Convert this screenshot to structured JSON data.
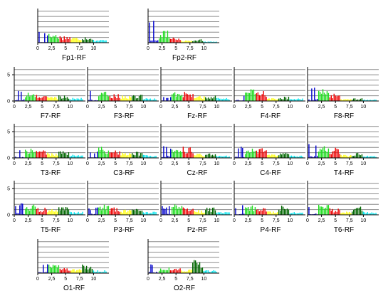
{
  "chart_data": {
    "type": "bar",
    "description_grid": "EEG spectral panels per electrode",
    "x_ticks": [
      "0",
      "2,5",
      "5",
      "7,5",
      "10"
    ],
    "x_range": [
      0,
      12.5
    ],
    "y_ticks": [
      "0",
      "5"
    ],
    "y_range": [
      0,
      6.5
    ],
    "grid": true,
    "band_colors": {
      "delta": "#0000cc",
      "theta": "#22dd22",
      "alpha1": "#ee0000",
      "alpha2": "#ffff00",
      "beta1": "#006600",
      "beta2": "#00e5ee"
    },
    "bands": [
      {
        "name": "delta",
        "from": 0.0,
        "to": 2.0
      },
      {
        "name": "theta",
        "from": 2.0,
        "to": 4.0
      },
      {
        "name": "alpha1",
        "from": 4.0,
        "to": 6.0
      },
      {
        "name": "alpha2",
        "from": 6.0,
        "to": 8.0
      },
      {
        "name": "beta1",
        "from": 8.0,
        "to": 10.0
      },
      {
        "name": "beta2",
        "from": 10.0,
        "to": 12.5
      }
    ],
    "panels": [
      {
        "label": "Fp1-RF",
        "profile": {
          "delta": 2.2,
          "theta": 1.8,
          "alpha1": 1.4,
          "alpha2": 1.1,
          "beta1": 1.3,
          "beta2": 0.6
        }
      },
      {
        "label": "Fp2-RF",
        "profile": {
          "delta": 6.0,
          "theta": 2.3,
          "alpha1": 1.2,
          "alpha2": 0.5,
          "beta1": 0.7,
          "beta2": 0.3
        }
      },
      {
        "label": "F7-RF",
        "profile": {
          "delta": 2.3,
          "theta": 1.6,
          "alpha1": 1.2,
          "alpha2": 0.9,
          "beta1": 1.2,
          "beta2": 0.6
        }
      },
      {
        "label": "F3-RF",
        "profile": {
          "delta": 2.2,
          "theta": 1.8,
          "alpha1": 1.4,
          "alpha2": 1.1,
          "beta1": 1.2,
          "beta2": 0.6
        }
      },
      {
        "label": "Fz-RF",
        "profile": {
          "delta": 0.8,
          "theta": 2.2,
          "alpha1": 1.8,
          "alpha2": 1.0,
          "beta1": 1.1,
          "beta2": 0.6
        }
      },
      {
        "label": "F4-RF",
        "profile": {
          "delta": 1.4,
          "theta": 2.4,
          "alpha1": 1.9,
          "alpha2": 0.6,
          "beta1": 0.9,
          "beta2": 0.5
        }
      },
      {
        "label": "F8-RF",
        "profile": {
          "delta": 3.8,
          "theta": 2.6,
          "alpha1": 1.4,
          "alpha2": 0.4,
          "beta1": 0.6,
          "beta2": 0.3
        }
      },
      {
        "label": "T3-RF",
        "profile": {
          "delta": 2.0,
          "theta": 1.9,
          "alpha1": 1.5,
          "alpha2": 1.0,
          "beta1": 1.3,
          "beta2": 0.6
        }
      },
      {
        "label": "C3-RF",
        "profile": {
          "delta": 1.4,
          "theta": 2.2,
          "alpha1": 1.7,
          "alpha2": 1.0,
          "beta1": 1.2,
          "beta2": 0.6
        }
      },
      {
        "label": "Cz-RF",
        "profile": {
          "delta": 2.8,
          "theta": 1.6,
          "alpha1": 2.2,
          "alpha2": 0.8,
          "beta1": 0.9,
          "beta2": 0.5
        }
      },
      {
        "label": "C4-RF",
        "profile": {
          "delta": 2.2,
          "theta": 1.9,
          "alpha1": 2.0,
          "alpha2": 0.7,
          "beta1": 1.0,
          "beta2": 0.5
        }
      },
      {
        "label": "T4-RF",
        "profile": {
          "delta": 2.7,
          "theta": 2.5,
          "alpha1": 2.0,
          "alpha2": 0.6,
          "beta1": 1.0,
          "beta2": 0.5
        }
      },
      {
        "label": "T5-RF",
        "profile": {
          "delta": 2.4,
          "theta": 2.1,
          "alpha1": 1.4,
          "alpha2": 1.1,
          "beta1": 1.6,
          "beta2": 0.6
        }
      },
      {
        "label": "P3-RF",
        "profile": {
          "delta": 1.5,
          "theta": 2.2,
          "alpha1": 1.5,
          "alpha2": 1.0,
          "beta1": 1.3,
          "beta2": 0.6
        }
      },
      {
        "label": "Pz-RF",
        "profile": {
          "delta": 1.8,
          "theta": 2.1,
          "alpha1": 1.6,
          "alpha2": 0.9,
          "beta1": 1.5,
          "beta2": 0.6
        }
      },
      {
        "label": "P4-RF",
        "profile": {
          "delta": 2.0,
          "theta": 1.8,
          "alpha1": 1.6,
          "alpha2": 0.7,
          "beta1": 1.9,
          "beta2": 0.6
        }
      },
      {
        "label": "T6-RF",
        "profile": {
          "delta": 2.0,
          "theta": 2.2,
          "alpha1": 1.3,
          "alpha2": 0.8,
          "beta1": 1.6,
          "beta2": 0.6
        }
      },
      {
        "label": "O1-RF",
        "profile": {
          "delta": 2.0,
          "theta": 1.7,
          "alpha1": 1.2,
          "alpha2": 0.9,
          "beta1": 1.8,
          "beta2": 0.6
        }
      },
      {
        "label": "O2-RF",
        "profile": {
          "delta": 1.9,
          "theta": 1.2,
          "alpha1": 1.3,
          "alpha2": 0.7,
          "beta1": 2.6,
          "beta2": 0.6
        }
      }
    ]
  }
}
